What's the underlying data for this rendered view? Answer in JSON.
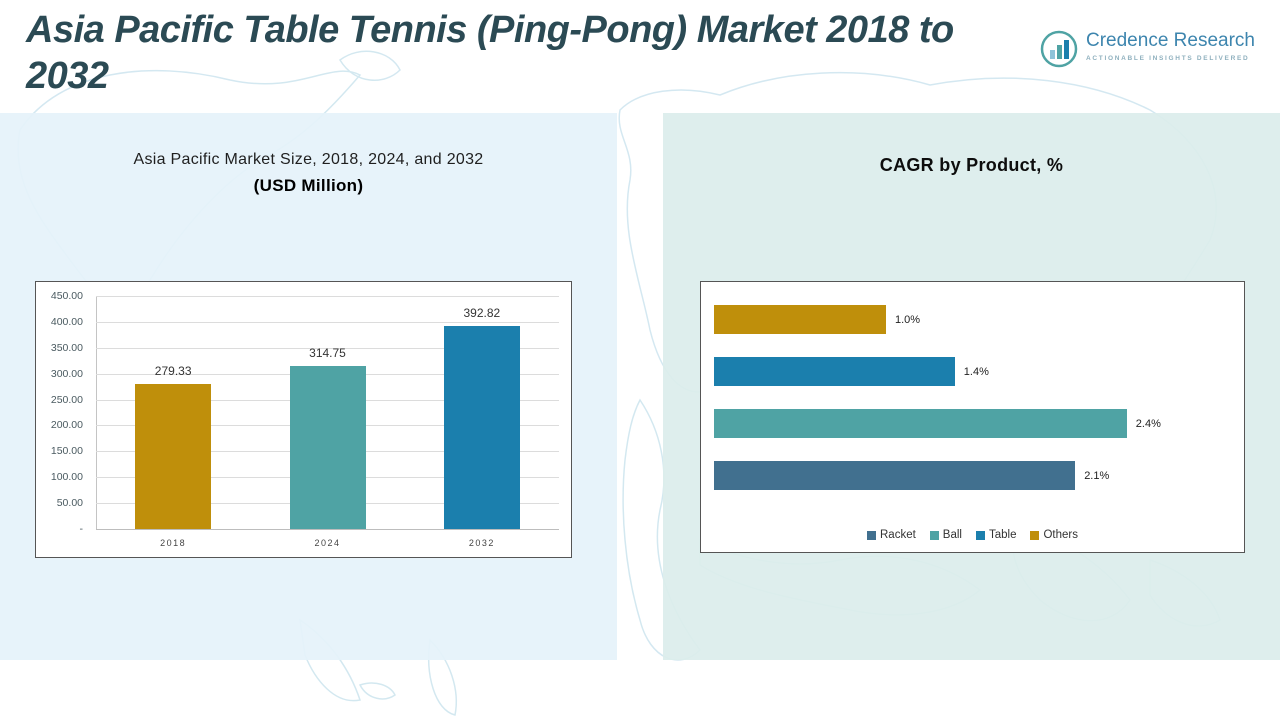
{
  "header": {
    "title": "Asia Pacific Table Tennis (Ping-Pong) Market 2018 to 2032",
    "logo": {
      "name": "Credence Research",
      "tagline": "ACTIONABLE INSIGHTS DELIVERED"
    }
  },
  "left_panel": {
    "title_line1": "Asia Pacific Market Size, 2018, 2024, and 2032",
    "title_line2": "(USD Million)"
  },
  "right_panel": {
    "title": "CAGR by Product, %"
  },
  "colors": {
    "gold": "#bf8f0b",
    "teal": "#4fa3a4",
    "blue": "#1b7fad",
    "slate_blue": "#41708f",
    "title_text": "#2b4a54",
    "panel_left_bg": "#e5f2fa",
    "panel_right_bg": "#dbedec"
  },
  "chart_data": [
    {
      "type": "bar",
      "title": "Asia Pacific Market Size, 2018, 2024, and 2032 (USD Million)",
      "categories": [
        "2018",
        "2024",
        "2032"
      ],
      "values": [
        279.33,
        314.75,
        392.82
      ],
      "value_labels": [
        "279.33",
        "314.75",
        "392.82"
      ],
      "bar_colors": [
        "#bf8f0b",
        "#4fa3a4",
        "#1b7fad"
      ],
      "ylabel": "",
      "xlabel": "",
      "ylim": [
        0,
        450
      ],
      "ytick_step": 50,
      "ytick_labels": [
        "450.00",
        "400.00",
        "350.00",
        "300.00",
        "250.00",
        "200.00",
        "150.00",
        "100.00",
        "50.00",
        "-"
      ],
      "grid": true,
      "legend_position": "none"
    },
    {
      "type": "bar-horizontal",
      "title": "CAGR by Product, %",
      "rows": [
        {
          "name": "Others",
          "value": 1.0,
          "label": "1.0%",
          "color": "#bf8f0b"
        },
        {
          "name": "Table",
          "value": 1.4,
          "label": "1.4%",
          "color": "#1b7fad"
        },
        {
          "name": "Ball",
          "value": 2.4,
          "label": "2.4%",
          "color": "#4fa3a4"
        },
        {
          "name": "Racket",
          "value": 2.1,
          "label": "2.1%",
          "color": "#41708f"
        }
      ],
      "xlim": [
        0,
        3
      ],
      "grid": false,
      "legend_position": "bottom",
      "legend": [
        {
          "label": "Racket",
          "color": "#41708f"
        },
        {
          "label": "Ball",
          "color": "#4fa3a4"
        },
        {
          "label": "Table",
          "color": "#1b7fad"
        },
        {
          "label": "Others",
          "color": "#bf8f0b"
        }
      ]
    }
  ]
}
